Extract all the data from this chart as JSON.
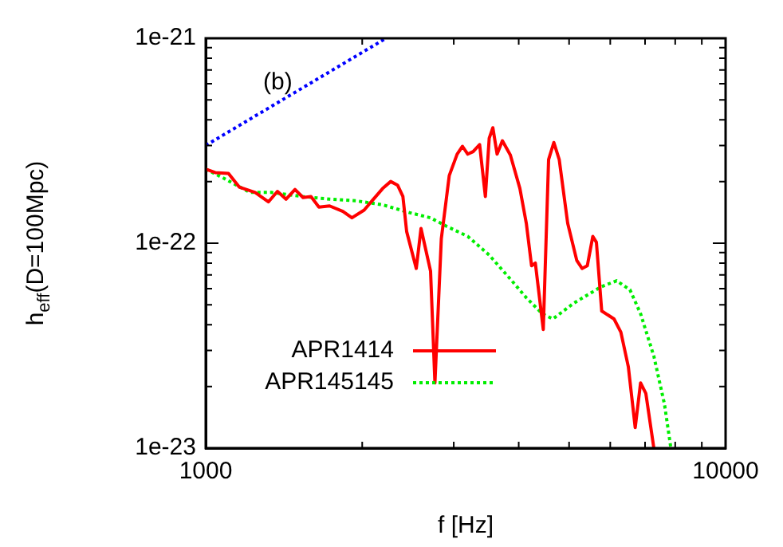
{
  "chart_data": {
    "type": "line",
    "xlabel": "f [Hz]",
    "ylabel": "h$_{eff}$(D=100Mpc)",
    "annotations": [
      "(b)"
    ],
    "log": "xy",
    "grid": false,
    "legend": "bottom left",
    "marker": "none",
    "xlim": [
      1000,
      10000
    ],
    "ylim": [
      1e-23,
      1e-21
    ],
    "xticks": [
      1000,
      {
        "value": 2000,
        "label": null
      },
      {
        "value": 3000,
        "label": null
      },
      {
        "value": 4000,
        "label": null
      },
      {
        "value": 5000,
        "label": null
      },
      {
        "value": 6000,
        "label": null
      },
      {
        "value": 7000,
        "label": null
      },
      {
        "value": 8000,
        "label": null
      },
      {
        "value": 9000,
        "label": null
      },
      10000
    ],
    "yticks": [
      1e-23,
      {
        "value": 2e-23,
        "label": null
      },
      {
        "value": 3e-23,
        "label": null
      },
      {
        "value": 4e-23,
        "label": null
      },
      {
        "value": 5e-23,
        "label": null
      },
      {
        "value": 6e-23,
        "label": null
      },
      {
        "value": 7e-23,
        "label": null
      },
      {
        "value": 8e-23,
        "label": null
      },
      {
        "value": 9e-23,
        "label": null
      },
      1e-22,
      {
        "value": 2e-22,
        "label": null
      },
      {
        "value": 3e-22,
        "label": null
      },
      {
        "value": 4e-22,
        "label": null
      },
      {
        "value": 5e-22,
        "label": null
      },
      {
        "value": 6e-22,
        "label": null
      },
      {
        "value": 7e-22,
        "label": null
      },
      {
        "value": 8e-22,
        "label": null
      },
      {
        "value": 9e-22,
        "label": null
      },
      1e-21
    ],
    "series": [
      {
        "name": "APR1414",
        "color": "#ff0000",
        "line_style": "solid",
        "x": [
          1000,
          1043,
          1106,
          1160,
          1245,
          1320,
          1374,
          1427,
          1485,
          1539,
          1594,
          1651,
          1731,
          1836,
          1911,
          2017,
          2089,
          2190,
          2269,
          2339,
          2395,
          2435,
          2541,
          2595,
          2707,
          2760,
          2839,
          2941,
          3045,
          3118,
          3192,
          3269,
          3364,
          3451,
          3510,
          3567,
          3635,
          3721,
          3855,
          4021,
          4137,
          4234,
          4306,
          4460,
          4566,
          4673,
          4786,
          4969,
          5173,
          5296,
          5420,
          5554,
          5643,
          5777,
          6101,
          6289,
          6501,
          6701,
          6862,
          7024,
          7278
        ],
        "values": [
          2.3e-22,
          2.21e-22,
          2.19e-22,
          1.88e-22,
          1.77e-22,
          1.59e-22,
          1.79e-22,
          1.64e-22,
          1.83e-22,
          1.67e-22,
          1.69e-22,
          1.5e-22,
          1.52e-22,
          1.43e-22,
          1.33e-22,
          1.45e-22,
          1.61e-22,
          1.85e-22,
          2e-22,
          1.92e-22,
          1.69e-22,
          1.14e-22,
          7.53e-23,
          1.18e-22,
          7.31e-23,
          2.08e-23,
          1.05e-22,
          2.14e-22,
          2.72e-22,
          2.97e-22,
          2.72e-22,
          2.8e-22,
          3.03e-22,
          1.69e-22,
          3.25e-22,
          3.66e-22,
          2.72e-22,
          3.16e-22,
          2.69e-22,
          1.85e-22,
          1.25e-22,
          7.76e-23,
          8e-23,
          3.79e-23,
          2.56e-22,
          3.1e-22,
          2.56e-22,
          1.25e-22,
          8.24e-23,
          7.53e-23,
          7.76e-23,
          1.08e-22,
          1.01e-22,
          4.67e-23,
          4.27e-23,
          3.68e-23,
          2.49e-23,
          1.26e-23,
          2.08e-23,
          1.85e-23,
          1e-23
        ]
      },
      {
        "name": "APR145145",
        "color": "#00ee00",
        "line_style": "dotted",
        "x": [
          1000,
          1081,
          1216,
          1336,
          1539,
          1731,
          1947,
          2190,
          2465,
          2707,
          2905,
          3192,
          3510,
          3855,
          4137,
          4438,
          4654,
          5112,
          5752,
          6172,
          6546,
          6862,
          7278,
          7628,
          7848
        ],
        "values": [
          2.3e-22,
          2.08e-22,
          1.77e-22,
          1.77e-22,
          1.69e-22,
          1.64e-22,
          1.61e-22,
          1.54e-22,
          1.41e-22,
          1.33e-22,
          1.21e-22,
          1.08e-22,
          8.75e-23,
          6.68e-23,
          5.42e-23,
          4.53e-23,
          4.27e-23,
          5.11e-23,
          6.11e-23,
          6.56e-23,
          5.93e-23,
          4.53e-23,
          2.81e-23,
          1.64e-23,
          1e-23
        ]
      },
      {
        "color": "#0000ff",
        "line_style": "dotted",
        "x": [
          1000,
          2222
        ],
        "values": [
          3e-22,
          1e-21
        ]
      }
    ]
  }
}
